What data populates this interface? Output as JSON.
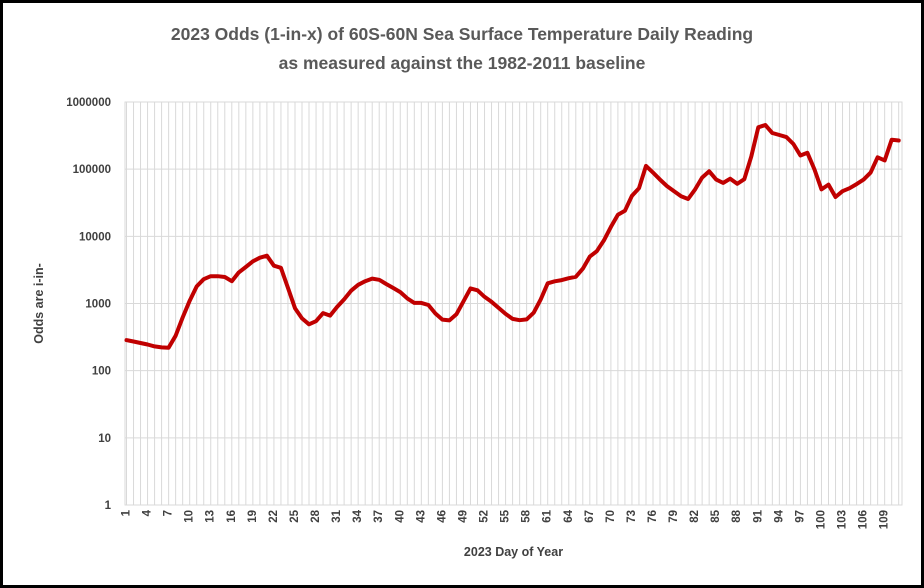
{
  "title": {
    "line1": "2023 Odds (1-in-x) of 60S-60N Sea Surface Temperature Daily Reading",
    "line2": "as measured against the 1982-2011 baseline"
  },
  "axes": {
    "y_title": "Odds are i-in-",
    "x_title": "2023 Day of Year",
    "y_tick_labels": [
      "1000000",
      "100000",
      "10000",
      "1000",
      "100",
      "10",
      "1"
    ],
    "x_tick_labels": [
      1,
      4,
      7,
      10,
      13,
      16,
      19,
      22,
      25,
      28,
      31,
      34,
      37,
      40,
      43,
      46,
      49,
      52,
      55,
      58,
      61,
      64,
      67,
      70,
      73,
      76,
      79,
      82,
      85,
      88,
      91,
      94,
      97,
      100,
      103,
      106,
      109
    ]
  },
  "colors": {
    "line": "#C00000",
    "grid": "#D9D9D9",
    "tick_text": "#404040",
    "title_text": "#595959",
    "background": "#FFFFFF",
    "border": "#000000"
  },
  "chart_data": {
    "type": "line",
    "title": "2023 Odds (1-in-x) of 60S-60N Sea Surface Temperature Daily Reading as measured against the 1982-2011 baseline",
    "xlabel": "2023 Day of Year",
    "ylabel": "Odds are i-in-",
    "y_scale": "log",
    "ylim": [
      1,
      1000000
    ],
    "grid": "on",
    "legend": "none",
    "x_start": 1,
    "x_step": 1,
    "n_points": 111,
    "values": [
      285,
      272,
      258,
      245,
      230,
      222,
      220,
      330,
      620,
      1100,
      1800,
      2300,
      2550,
      2550,
      2480,
      2150,
      2900,
      3500,
      4250,
      4800,
      5150,
      3650,
      3400,
      1700,
      850,
      600,
      490,
      545,
      720,
      660,
      890,
      1150,
      1550,
      1900,
      2150,
      2350,
      2250,
      1950,
      1700,
      1480,
      1190,
      1020,
      1020,
      950,
      710,
      575,
      560,
      690,
      1080,
      1680,
      1570,
      1260,
      1060,
      860,
      700,
      590,
      565,
      580,
      730,
      1150,
      2000,
      2140,
      2230,
      2380,
      2500,
      3300,
      5000,
      6000,
      8700,
      13800,
      21000,
      24000,
      40000,
      52000,
      112000,
      89000,
      70000,
      56000,
      47000,
      39500,
      36000,
      50000,
      75000,
      93000,
      70000,
      62500,
      72000,
      60500,
      71000,
      155000,
      420000,
      455000,
      345000,
      323000,
      300000,
      237000,
      160000,
      175000,
      99000,
      50000,
      59000,
      38500,
      47000,
      52000,
      60000,
      70000,
      89000,
      150000,
      135000,
      275000,
      267000
    ]
  }
}
